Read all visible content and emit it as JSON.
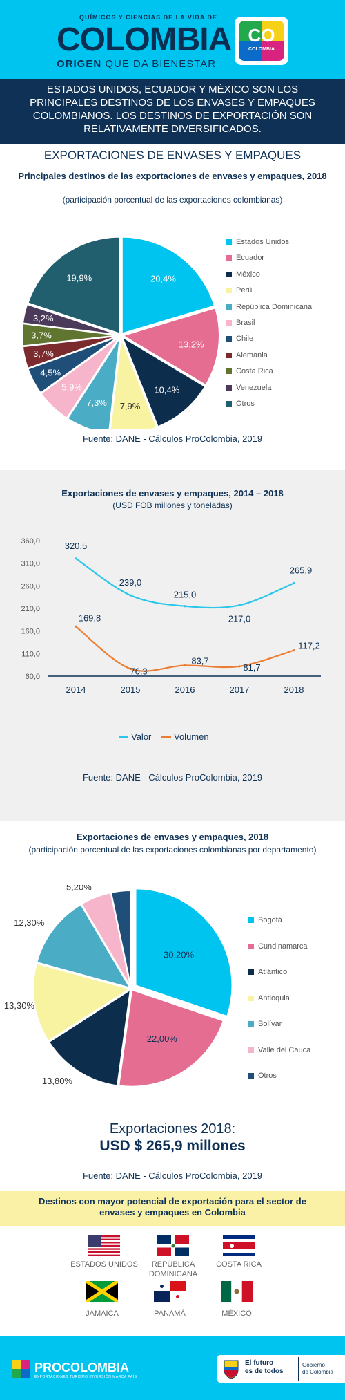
{
  "header": {
    "tagline_top": "QUÍMICOS Y CIENCIAS DE LA VIDA DE",
    "logo_text": "COLOMBIA",
    "tagline_bold": "ORIGEN",
    "tagline_rest": " QUE DA BIENESTAR",
    "badge_co": "CO",
    "badge_colombia": "COLOMBIA"
  },
  "intro": "ESTADOS UNIDOS, ECUADOR Y MÉXICO SON LOS PRINCIPALES DESTINOS DE LOS ENVASES Y EMPAQUES COLOMBIANOS. LOS DESTINOS DE EXPORTACIÓN SON RELATIVAMENTE DIVERSIFICADOS.",
  "section_title": "EXPORTACIONES DE ENVASES Y EMPAQUES",
  "source_text": "Fuente: DANE - Cálculos ProColombia, 2019",
  "chart_data": [
    {
      "type": "pie",
      "title": "Principales destinos de las exportaciones de envases y empaques, 2018",
      "subtitle": "(participación porcentual de las exportaciones colombianas)",
      "slices": [
        {
          "label": "Estados Unidos",
          "value": 20.4,
          "display": "20,4%",
          "color": "#00c4f0"
        },
        {
          "label": "Ecuador",
          "value": 13.2,
          "display": "13,2%",
          "color": "#e66d92"
        },
        {
          "label": "México",
          "value": 10.4,
          "display": "10,4%",
          "color": "#0d2d4c"
        },
        {
          "label": "Perú",
          "value": 7.9,
          "display": "7,9%",
          "color": "#f8f3a1"
        },
        {
          "label": "República Dominicana",
          "value": 7.3,
          "display": "7,3%",
          "color": "#4bacc6"
        },
        {
          "label": "Brasil",
          "value": 5.9,
          "display": "5,9%",
          "color": "#f6b5cb"
        },
        {
          "label": "Chile",
          "value": 4.5,
          "display": "4,5%",
          "color": "#1f4e79"
        },
        {
          "label": "Alemania",
          "value": 3.7,
          "display": "3,7%",
          "color": "#7b2a2e"
        },
        {
          "label": "Costa Rica",
          "value": 3.7,
          "display": "3,7%",
          "color": "#5f7530"
        },
        {
          "label": "Venezuela",
          "value": 3.2,
          "display": "3,2%",
          "color": "#4b3a5a"
        },
        {
          "label": "Otros",
          "value": 19.9,
          "display": "19,9%",
          "color": "#215f6e"
        }
      ]
    },
    {
      "type": "line",
      "title": "Exportaciones de envases y empaques, 2014 – 2018",
      "subtitle": "(USD FOB millones y toneladas)",
      "x": [
        "2014",
        "2015",
        "2016",
        "2017",
        "2018"
      ],
      "ylim": [
        60,
        360
      ],
      "yticks": [
        "360,0",
        "310,0",
        "260,0",
        "210,0",
        "160,0",
        "110,0",
        "60,0"
      ],
      "ytick_values": [
        360,
        310,
        260,
        210,
        160,
        110,
        60
      ],
      "series": [
        {
          "name": "Valor",
          "color": "#2cc6ea",
          "values": [
            320.5,
            239.0,
            215.0,
            217.0,
            265.9
          ],
          "labels": [
            "320,5",
            "239,0",
            "215,0",
            "217,0",
            "265,9"
          ]
        },
        {
          "name": "Volumen",
          "color": "#ed7d31",
          "values": [
            169.8,
            76.3,
            83.7,
            81.7,
            117.2
          ],
          "labels": [
            "169,8",
            "76,3",
            "83,7",
            "81,7",
            "117,2"
          ]
        }
      ],
      "legend": "bottom",
      "grid": false
    },
    {
      "type": "pie",
      "title": "Exportaciones de envases y empaques, 2018",
      "subtitle": "(participación porcentual de las exportaciones colombianas por departamento)",
      "slices": [
        {
          "label": "Bogotá",
          "value": 30.2,
          "display": "30,20%",
          "color": "#00c4f0"
        },
        {
          "label": "Cundinamarca",
          "value": 22.0,
          "display": "22,00%",
          "color": "#e66d92"
        },
        {
          "label": "Atlántico",
          "value": 13.8,
          "display": "13,80%",
          "color": "#0d2d4c"
        },
        {
          "label": "Antioquia",
          "value": 13.3,
          "display": "13,30%",
          "color": "#f8f3a1"
        },
        {
          "label": "Bolívar",
          "value": 12.3,
          "display": "12,30%",
          "color": "#4bacc6"
        },
        {
          "label": "Valle del Cauca",
          "value": 5.2,
          "display": "5,20%",
          "color": "#f6b5cb"
        },
        {
          "label": "Otros",
          "value": 3.3,
          "display": "3,30%",
          "color": "#1f4e79"
        }
      ]
    }
  ],
  "exports_total": {
    "label": "Exportaciones 2018:",
    "value": "USD $ 265,9 millones"
  },
  "destinations": {
    "title": "Destinos con mayor potencial de exportación para el sector de envases y empaques en Colombia",
    "countries": [
      {
        "name": "ESTADOS UNIDOS",
        "flag": "usa-flag"
      },
      {
        "name": "REPÚBLICA DOMINICANA",
        "flag": "dominican-republic-flag"
      },
      {
        "name": "COSTA RICA",
        "flag": "costa-rica-flag"
      },
      {
        "name": "JAMAICA",
        "flag": "jamaica-flag"
      },
      {
        "name": "PANAMÁ",
        "flag": "panama-flag"
      },
      {
        "name": "MÉXICO",
        "flag": "mexico-flag"
      }
    ]
  },
  "footer": {
    "procolombia": "PROCOLOMBIA",
    "procolombia_sub": "EXPORTACIONES TURISMO INVERSIÓN MARCA PAÍS",
    "gov_line1": "El futuro",
    "gov_line2": "es de todos",
    "gov_right1": "Gobierno",
    "gov_right2": "de Colombia"
  }
}
